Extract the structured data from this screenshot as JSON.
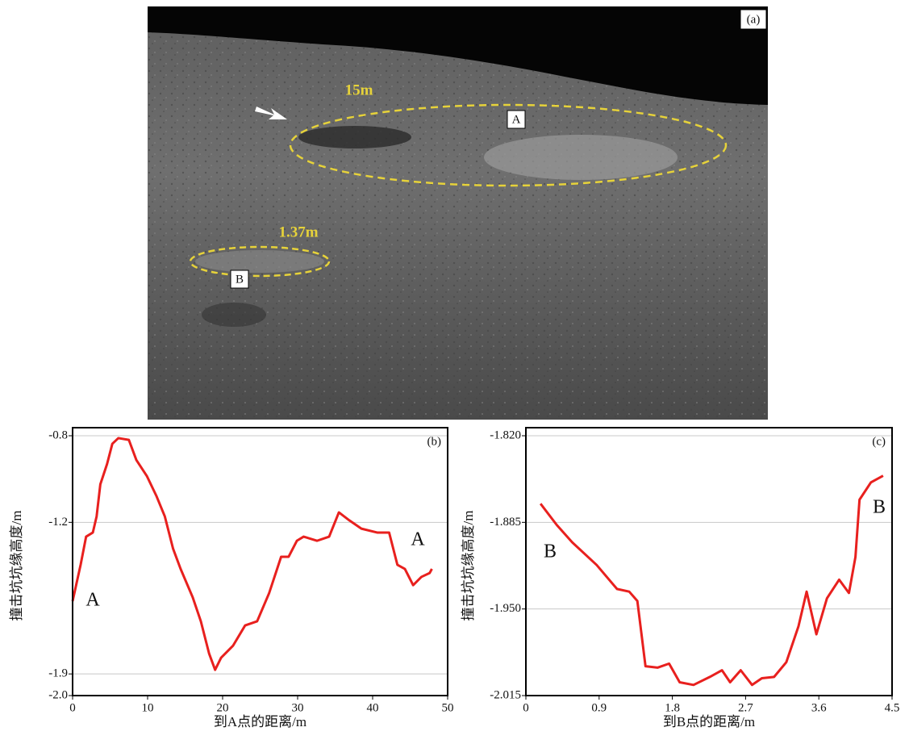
{
  "photo": {
    "panel_label": "(a)",
    "size_labels": [
      "15m",
      "1.37m"
    ],
    "crater_labels": [
      "A",
      "B"
    ]
  },
  "chart_data": [
    {
      "type": "line",
      "panel_label": "(b)",
      "ylabel": "撞击坑坑缘高度/m",
      "xlabel": "到A点的距离/m",
      "xlim": [
        0,
        50
      ],
      "xticks": [
        0,
        10,
        20,
        30,
        40,
        50
      ],
      "ylim": [
        -2.0,
        -0.8
      ],
      "yticks": [
        -0.8,
        -1.2,
        -1.9,
        {
          "value": -2.0,
          "label": "-2.0"
        }
      ],
      "grid": true,
      "color": "#e8201e",
      "annotations": [
        "A",
        "A"
      ],
      "x": [
        0,
        1.07,
        1.8,
        2.7,
        3.2,
        3.7,
        4.6,
        5.3,
        6.1,
        7.5,
        8.5,
        9.9,
        11.2,
        12.3,
        13.4,
        14.4,
        16,
        17.1,
        18.2,
        19,
        19.8,
        21.4,
        23,
        24.6,
        26.2,
        27.8,
        28.8,
        29.9,
        30.8,
        32.6,
        34.2,
        35.5,
        36.9,
        38.5,
        40.6,
        42.2,
        43.3,
        44.3,
        45.4,
        46.5,
        47.6,
        47.9
      ],
      "values": [
        -1.564,
        -1.396,
        -1.266,
        -1.247,
        -1.173,
        -1.024,
        -0.93,
        -0.837,
        -0.811,
        -0.819,
        -0.912,
        -0.986,
        -1.08,
        -1.173,
        -1.322,
        -1.415,
        -1.545,
        -1.657,
        -1.806,
        -1.881,
        -1.825,
        -1.769,
        -1.676,
        -1.657,
        -1.527,
        -1.359,
        -1.359,
        -1.285,
        -1.266,
        -1.285,
        -1.266,
        -1.154,
        -1.191,
        -1.229,
        -1.247,
        -1.247,
        -1.396,
        -1.415,
        -1.49,
        -1.452,
        -1.434,
        -1.415
      ]
    },
    {
      "type": "line",
      "panel_label": "(c)",
      "ylabel": "撞击坑坑缘高度/m",
      "xlabel": "到B点的距离/m",
      "xlim": [
        0,
        4.5
      ],
      "xticks": [
        0,
        0.9,
        1.8,
        2.7,
        3.6,
        4.5
      ],
      "ylim": [
        -2.015,
        -1.82
      ],
      "yticks": [
        {
          "value": -1.82,
          "label": "-1.820"
        },
        {
          "value": -1.885,
          "label": "-1.885"
        },
        {
          "value": -1.95,
          "label": "-1.950"
        },
        {
          "value": -2.015,
          "label": "-2.015"
        }
      ],
      "grid": true,
      "color": "#e8201e",
      "annotations": [
        "B",
        "B"
      ],
      "x": [
        0.18,
        0.38,
        0.57,
        0.87,
        1.12,
        1.27,
        1.37,
        1.47,
        1.62,
        1.76,
        1.89,
        2.06,
        2.26,
        2.41,
        2.51,
        2.64,
        2.78,
        2.9,
        3.05,
        3.2,
        3.35,
        3.45,
        3.57,
        3.7,
        3.85,
        3.97,
        4.05,
        4.1,
        4.24,
        4.39
      ],
      "values": [
        -1.871,
        -1.887,
        -1.9,
        -1.917,
        -1.935,
        -1.937,
        -1.944,
        -1.993,
        -1.994,
        -1.991,
        -2.005,
        -2.007,
        -2.001,
        -1.996,
        -2.005,
        -1.996,
        -2.007,
        -2.002,
        -2.001,
        -1.99,
        -1.963,
        -1.937,
        -1.969,
        -1.942,
        -1.928,
        -1.938,
        -1.911,
        -1.868,
        -1.855,
        -1.85
      ]
    }
  ]
}
